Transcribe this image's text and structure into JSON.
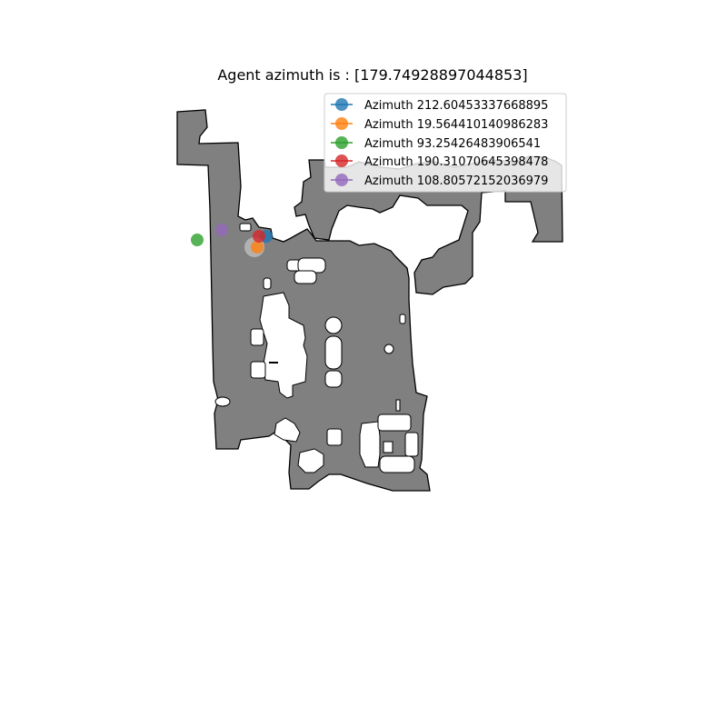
{
  "title": "Agent azimuth is : [179.74928897044853]",
  "map": {
    "floor_color": "#808080",
    "edge_color": "#000000",
    "free_space_color": "#ffffff"
  },
  "agent": {
    "color": "#d3d3d3"
  },
  "legend": {
    "placement": "top-right",
    "items": [
      {
        "label": "Azimuth 212.60453337668895",
        "color": "#1f77b4"
      },
      {
        "label": "Azimuth 19.564410140986283",
        "color": "#ff7f0e"
      },
      {
        "label": "Azimuth 93.25426483906541",
        "color": "#2ca02c"
      },
      {
        "label": "Azimuth 190.31070645398478",
        "color": "#d62728"
      },
      {
        "label": "Azimuth 108.80572152036979",
        "color": "#9467bd"
      }
    ]
  }
}
